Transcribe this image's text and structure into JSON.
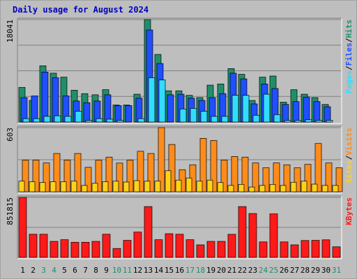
{
  "chart_data": {
    "type": "bar",
    "title": "Daily usage for August 2024",
    "categories": [
      "1",
      "2",
      "3",
      "4",
      "5",
      "6",
      "7",
      "8",
      "9",
      "10",
      "11",
      "12",
      "13",
      "14",
      "15",
      "16",
      "17",
      "18",
      "19",
      "20",
      "21",
      "22",
      "23",
      "24",
      "25",
      "26",
      "27",
      "28",
      "29",
      "30",
      "31"
    ],
    "weekend_days": [
      "3",
      "4",
      "10",
      "11",
      "17",
      "18",
      "24",
      "25",
      "31"
    ],
    "panels": [
      {
        "id": "hits",
        "max_label": "18041",
        "ylim": [
          0,
          18041
        ],
        "series": [
          {
            "name": "Hits",
            "color": "#1f8f6a",
            "values": [
              6100,
              3800,
              9900,
              8600,
              7900,
              5600,
              5000,
              4800,
              5700,
              3000,
              3000,
              4900,
              18041,
              11900,
              5500,
              5500,
              4700,
              4300,
              6500,
              6700,
              9400,
              8400,
              3800,
              7900,
              8100,
              3500,
              5700,
              4900,
              4300,
              3100,
              0
            ]
          },
          {
            "name": "Files",
            "color": "#1f4fff",
            "values": [
              4300,
              4600,
              8800,
              7800,
              4600,
              3700,
              3400,
              3700,
              4800,
              2900,
              2900,
              4200,
              16200,
              10300,
              4800,
              4900,
              4200,
              3800,
              4300,
              5000,
              8600,
              7600,
              3200,
              6700,
              5900,
              3100,
              3600,
              4400,
              3600,
              2700,
              0
            ]
          },
          {
            "name": "Pages",
            "color": "#33dcff",
            "values": [
              600,
              600,
              1000,
              1100,
              1000,
              1900,
              300,
              600,
              500,
              300,
              0,
              600,
              7800,
              7400,
              0,
              2300,
              2400,
              1900,
              1000,
              1000,
              4700,
              4700,
              1200,
              4900,
              1300,
              300,
              300,
              400,
              300,
              300,
              0
            ]
          }
        ]
      },
      {
        "id": "visits",
        "max_label": "603",
        "ylim": [
          0,
          603
        ],
        "series": [
          {
            "name": "Visits",
            "color": "#ff8c1a",
            "values": [
              297,
              297,
              271,
              360,
              297,
              360,
              230,
              297,
              326,
              270,
              297,
              381,
              360,
              603,
              445,
              208,
              254,
              502,
              482,
              297,
              332,
              326,
              271,
              226,
              271,
              254,
              226,
              258,
              454,
              271,
              226
            ]
          },
          {
            "name": "Sites",
            "color": "#ffd21a",
            "values": [
              100,
              95,
              87,
              95,
              95,
              100,
              60,
              80,
              95,
              100,
              92,
              105,
              100,
              100,
              198,
              110,
              130,
              100,
              110,
              87,
              60,
              70,
              45,
              60,
              70,
              60,
              90,
              100,
              72,
              60,
              60
            ]
          }
        ]
      },
      {
        "id": "kbytes",
        "max_label": "851815",
        "ylim": [
          0,
          851815
        ],
        "series": [
          {
            "name": "KBytes",
            "color": "#ff1a1a",
            "values": [
              851815,
              328540,
              328540,
              227330,
              251120,
              214850,
              214850,
              227330,
              328540,
              126820,
              242320,
              359310,
              721800,
              251120,
              336360,
              328540,
              251120,
              178240,
              227330,
              227330,
              327660,
              721800,
              622940,
              219960,
              618070,
              219960,
              178240,
              239940,
              242320,
              249520,
              150270
            ]
          }
        ]
      }
    ],
    "side_labels": {
      "hits": [
        "Pages",
        "Files",
        "Hits"
      ],
      "visits": [
        "Sites",
        "Visits"
      ],
      "kbytes": [
        "KBytes"
      ]
    }
  }
}
